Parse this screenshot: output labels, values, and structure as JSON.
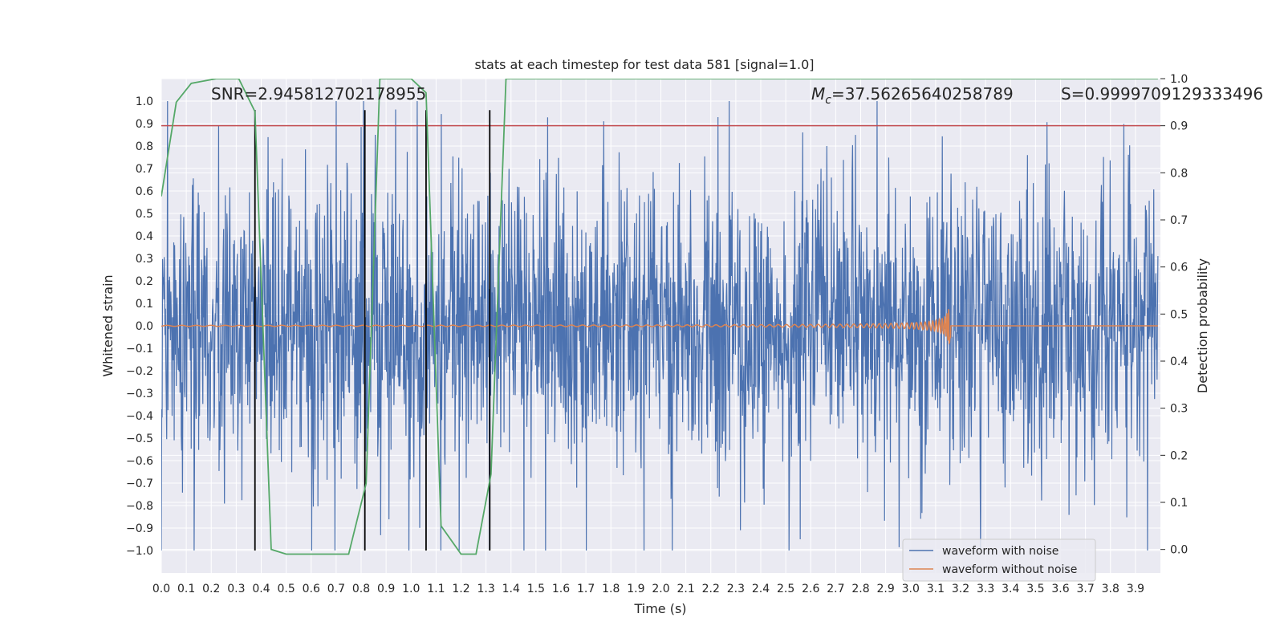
{
  "chart_data": {
    "type": "line",
    "title": "stats at each timestep for test data 581 [signal=1.0]",
    "xlabel": "Time (s)",
    "ylabel": "Whitened strain",
    "ylabel_right": "Detection probability",
    "xlim": [
      0.0,
      4.0
    ],
    "ylim": [
      -1.1,
      1.1
    ],
    "ylim_right": [
      -0.05,
      1.0
    ],
    "x_ticks": [
      "0.0",
      "0.1",
      "0.2",
      "0.3",
      "0.4",
      "0.5",
      "0.6",
      "0.7",
      "0.8",
      "0.9",
      "1.0",
      "1.1",
      "1.2",
      "1.3",
      "1.4",
      "1.5",
      "1.6",
      "1.7",
      "1.8",
      "1.9",
      "2.0",
      "2.1",
      "2.2",
      "2.3",
      "2.4",
      "2.5",
      "2.6",
      "2.7",
      "2.8",
      "2.9",
      "3.0",
      "3.1",
      "3.2",
      "3.3",
      "3.4",
      "3.5",
      "3.6",
      "3.7",
      "3.8",
      "3.9"
    ],
    "y_ticks": [
      "1.0",
      "0.9",
      "0.8",
      "0.7",
      "0.6",
      "0.5",
      "0.4",
      "0.3",
      "0.2",
      "0.1",
      "0.0",
      "−0.1",
      "−0.2",
      "−0.3",
      "−0.4",
      "−0.5",
      "−0.6",
      "−0.7",
      "−0.8",
      "−0.9",
      "−1.0"
    ],
    "y_ticks_right": [
      "1.0",
      "0.9",
      "0.8",
      "0.7",
      "0.6",
      "0.5",
      "0.4",
      "0.3",
      "0.2",
      "0.1",
      "0.0"
    ],
    "grid": true,
    "legend_position": "bottom-right",
    "annotations": {
      "snr": "SNR=2.945812702178955",
      "mc_symbol": "M",
      "mc_sub": "c",
      "mc_value": "=37.56265640258789",
      "s": "S=0.9999709129333496"
    },
    "series": [
      {
        "name": "waveform with noise",
        "color": "#4c72b0",
        "noise_amplitude": 0.95
      },
      {
        "name": "waveform without noise",
        "color": "#dd8452",
        "chirp_end_time": 3.16,
        "chirp_peak_amplitude": 0.2
      },
      {
        "color": "#55a868",
        "axis": "right",
        "x": [
          0.0,
          0.06,
          0.12,
          0.22,
          0.31,
          0.375,
          0.44,
          0.5,
          0.6,
          0.75,
          0.82,
          0.875,
          0.95,
          1.0,
          1.06,
          1.12,
          1.2,
          1.26,
          1.32,
          1.38,
          1.5,
          2.0,
          3.0,
          3.99
        ],
        "y": [
          0.75,
          0.95,
          0.99,
          1.0,
          1.0,
          0.93,
          0.0,
          -0.01,
          -0.01,
          -0.01,
          0.14,
          1.0,
          1.0,
          1.0,
          0.97,
          0.05,
          -0.01,
          -0.01,
          0.16,
          1.0,
          1.0,
          1.0,
          1.0,
          1.0
        ]
      }
    ],
    "threshold": {
      "value": 0.9,
      "axis": "right",
      "color": "#c44e52"
    },
    "vertical_markers": {
      "x": [
        0.375,
        0.815,
        1.06,
        1.315
      ],
      "color": "#000000",
      "y_range": [
        -1.0,
        0.96
      ]
    }
  }
}
